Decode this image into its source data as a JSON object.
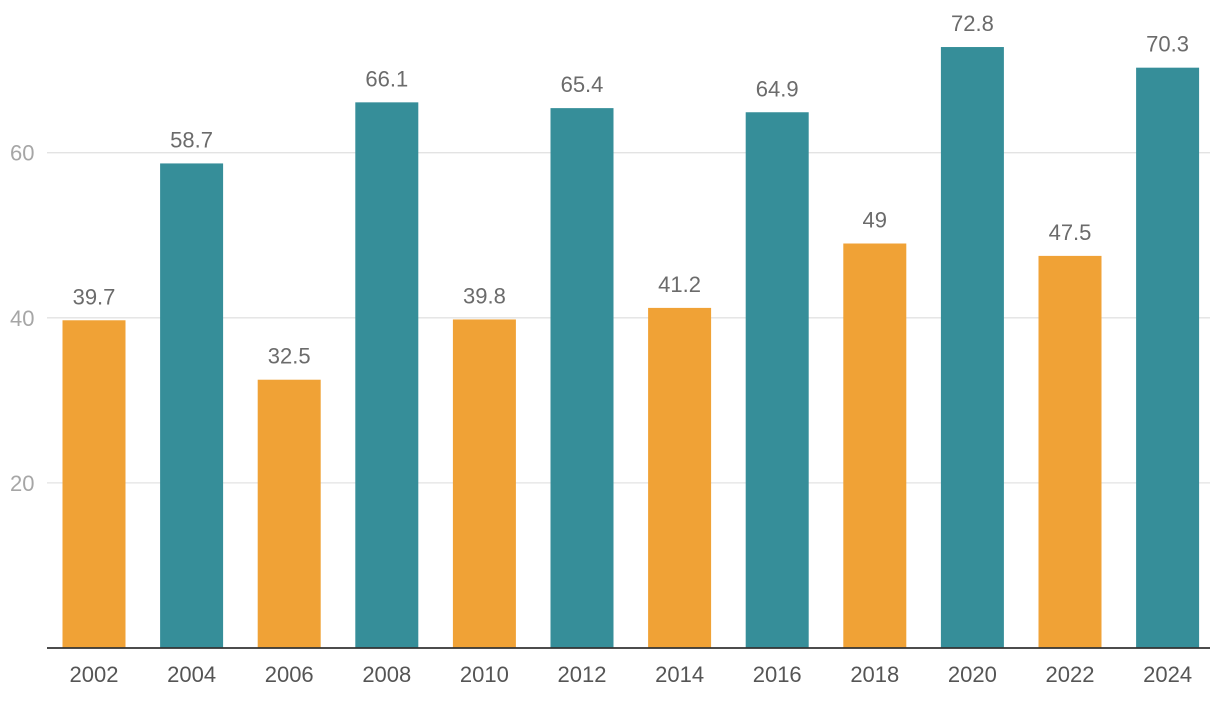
{
  "chart_data": {
    "type": "bar",
    "categories": [
      "2002",
      "2004",
      "2006",
      "2008",
      "2010",
      "2012",
      "2014",
      "2016",
      "2018",
      "2020",
      "2022",
      "2024"
    ],
    "values": [
      39.7,
      58.7,
      32.5,
      66.1,
      39.8,
      65.4,
      41.2,
      64.9,
      49,
      72.8,
      47.5,
      70.3
    ],
    "bar_colors": [
      "#f0a236",
      "#368e99",
      "#f0a236",
      "#368e99",
      "#f0a236",
      "#368e99",
      "#f0a236",
      "#368e99",
      "#f0a236",
      "#368e99",
      "#f0a236",
      "#368e99"
    ],
    "title": "",
    "xlabel": "",
    "ylabel": "",
    "ylim": [
      0,
      80
    ],
    "yticks": [
      20,
      40,
      60
    ],
    "grid": true,
    "data_labels": true
  }
}
